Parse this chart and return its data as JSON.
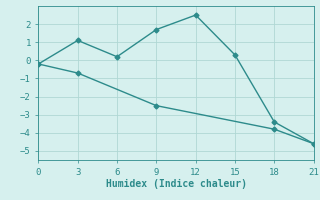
{
  "line1_x": [
    0,
    3,
    6,
    9,
    12,
    15,
    18,
    21
  ],
  "line1_y": [
    -0.2,
    1.1,
    0.2,
    1.7,
    2.5,
    0.3,
    -3.4,
    -4.6
  ],
  "line2_x": [
    0,
    3,
    9,
    18,
    21
  ],
  "line2_y": [
    -0.2,
    -0.7,
    -2.5,
    -3.8,
    -4.6
  ],
  "color": "#2d8b8b",
  "bg_color": "#d6f0ee",
  "xlabel": "Humidex (Indice chaleur)",
  "xlim": [
    0,
    21
  ],
  "ylim": [
    -5.5,
    3.0
  ],
  "xticks": [
    0,
    3,
    6,
    9,
    12,
    15,
    18,
    21
  ],
  "yticks": [
    -5,
    -4,
    -3,
    -2,
    -1,
    0,
    1,
    2
  ],
  "grid_color": "#b0d8d4",
  "marker": "D",
  "markersize": 2.5,
  "linewidth": 1.0
}
